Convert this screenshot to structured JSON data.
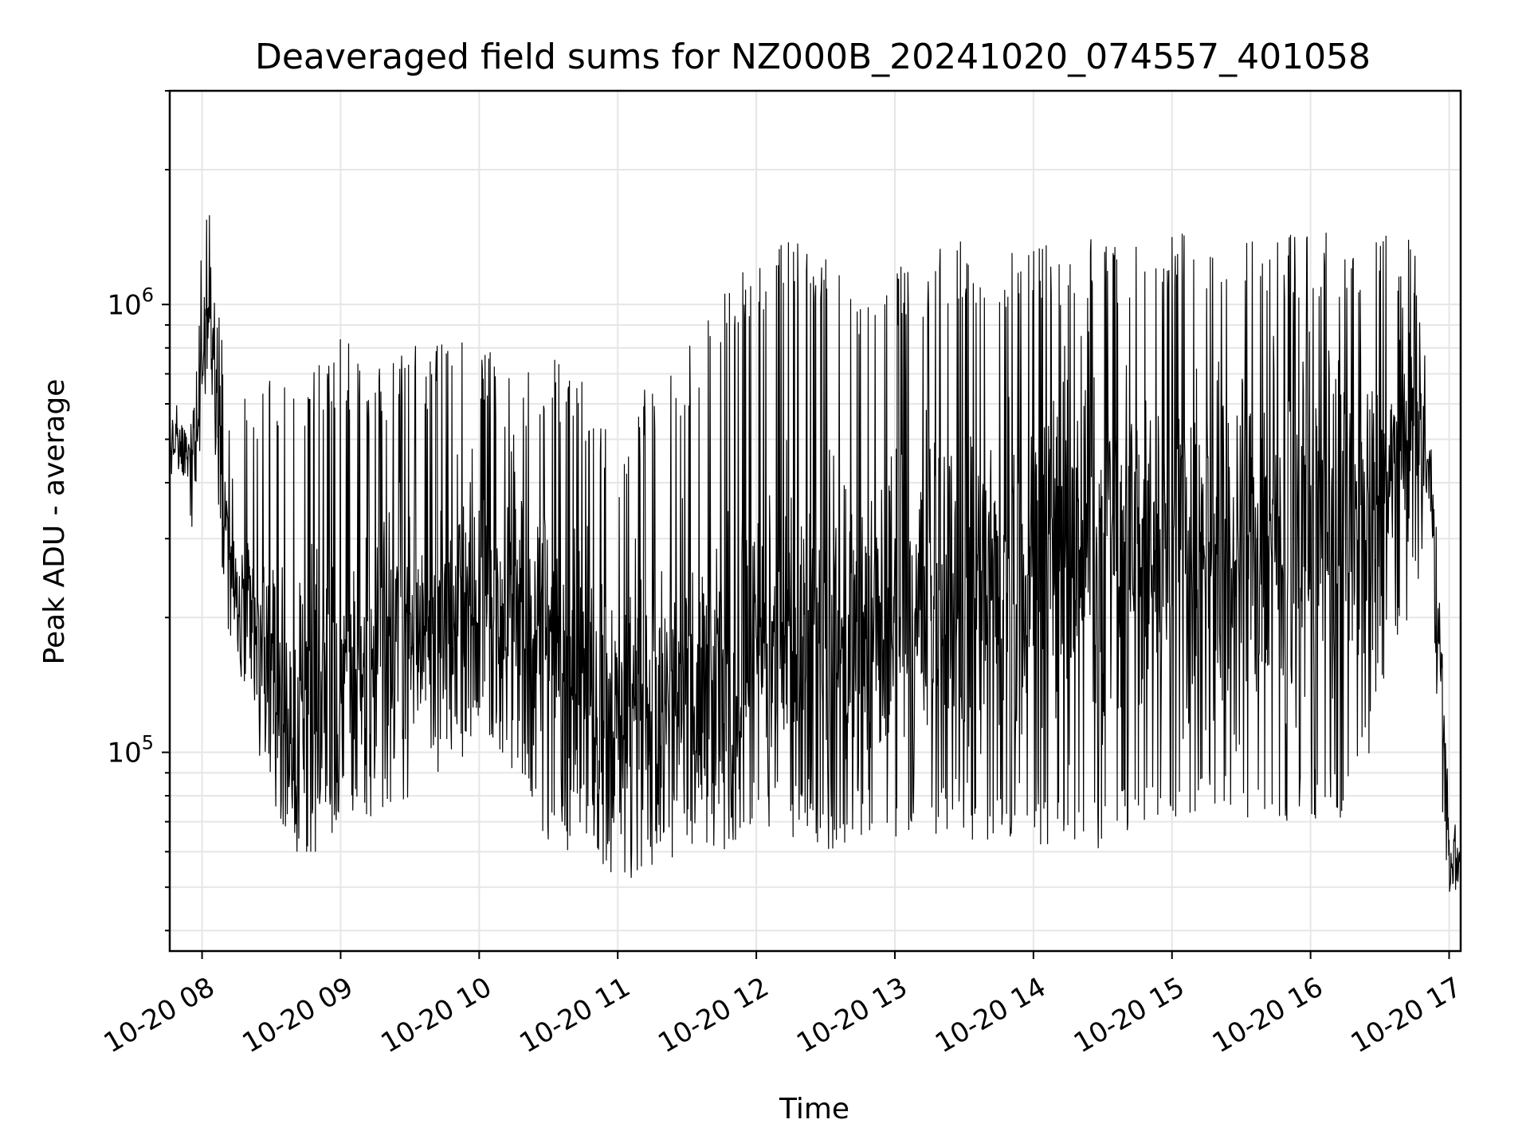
{
  "chart_data": {
    "type": "line",
    "title": "Deaveraged field sums for NZ000B_20241020_074557_401058",
    "xlabel": "Time",
    "ylabel": "Peak ADU - average",
    "yscale": "log",
    "ylim": [
      36000,
      3000000
    ],
    "xlim": [
      "2024-10-20T07:46",
      "2024-10-20T17:05"
    ],
    "grid": true,
    "x_ticks": [
      {
        "value": "2024-10-20T08:00",
        "label": "10-20 08"
      },
      {
        "value": "2024-10-20T09:00",
        "label": "10-20 09"
      },
      {
        "value": "2024-10-20T10:00",
        "label": "10-20 10"
      },
      {
        "value": "2024-10-20T11:00",
        "label": "10-20 11"
      },
      {
        "value": "2024-10-20T12:00",
        "label": "10-20 12"
      },
      {
        "value": "2024-10-20T13:00",
        "label": "10-20 13"
      },
      {
        "value": "2024-10-20T14:00",
        "label": "10-20 14"
      },
      {
        "value": "2024-10-20T15:00",
        "label": "10-20 15"
      },
      {
        "value": "2024-10-20T16:00",
        "label": "10-20 16"
      },
      {
        "value": "2024-10-20T17:00",
        "label": "10-20 17"
      }
    ],
    "y_ticks": [
      {
        "value": 100000,
        "base": "10",
        "exp": "5"
      },
      {
        "value": 1000000,
        "base": "10",
        "exp": "6"
      }
    ],
    "series": [
      {
        "color": "#000000",
        "x": [
          "2024-10-20T07:46",
          "2024-10-20T07:50",
          "2024-10-20T07:55",
          "2024-10-20T08:00",
          "2024-10-20T08:03",
          "2024-10-20T08:06",
          "2024-10-20T08:10",
          "2024-10-20T08:15",
          "2024-10-20T08:20",
          "2024-10-20T08:30",
          "2024-10-20T08:40",
          "2024-10-20T08:50",
          "2024-10-20T09:00",
          "2024-10-20T09:15",
          "2024-10-20T09:30",
          "2024-10-20T09:45",
          "2024-10-20T10:00",
          "2024-10-20T10:15",
          "2024-10-20T10:30",
          "2024-10-20T10:45",
          "2024-10-20T11:00",
          "2024-10-20T11:15",
          "2024-10-20T11:30",
          "2024-10-20T11:45",
          "2024-10-20T12:00",
          "2024-10-20T12:15",
          "2024-10-20T12:30",
          "2024-10-20T12:45",
          "2024-10-20T13:00",
          "2024-10-20T13:15",
          "2024-10-20T13:30",
          "2024-10-20T13:45",
          "2024-10-20T14:00",
          "2024-10-20T14:15",
          "2024-10-20T14:30",
          "2024-10-20T14:45",
          "2024-10-20T15:00",
          "2024-10-20T15:15",
          "2024-10-20T15:30",
          "2024-10-20T15:45",
          "2024-10-20T16:00",
          "2024-10-20T16:15",
          "2024-10-20T16:30",
          "2024-10-20T16:45",
          "2024-10-20T16:52",
          "2024-10-20T16:57",
          "2024-10-20T17:00",
          "2024-10-20T17:05"
        ],
        "center": [
          500000,
          480000,
          450000,
          700000,
          1100000,
          650000,
          350000,
          220000,
          190000,
          150000,
          110000,
          120000,
          130000,
          170000,
          190000,
          200000,
          220000,
          220000,
          180000,
          150000,
          120000,
          140000,
          130000,
          130000,
          150000,
          170000,
          170000,
          170000,
          200000,
          220000,
          200000,
          250000,
          280000,
          280000,
          290000,
          290000,
          300000,
          310000,
          300000,
          300000,
          320000,
          330000,
          330000,
          550000,
          420000,
          130000,
          55000,
          55000
        ],
        "low": [
          380000,
          400000,
          300000,
          500000,
          700000,
          400000,
          200000,
          160000,
          120000,
          80000,
          60000,
          60000,
          70000,
          70000,
          80000,
          90000,
          100000,
          90000,
          60000,
          60000,
          50000,
          55000,
          60000,
          60000,
          70000,
          65000,
          60000,
          65000,
          60000,
          65000,
          60000,
          60000,
          60000,
          60000,
          60000,
          65000,
          65000,
          70000,
          70000,
          60000,
          70000,
          70000,
          110000,
          220000,
          280000,
          60000,
          44000,
          50000
        ],
        "high": [
          650000,
          600000,
          560000,
          1400000,
          2600000,
          1200000,
          700000,
          700000,
          650000,
          750000,
          650000,
          750000,
          850000,
          750000,
          800000,
          850000,
          850000,
          700000,
          800000,
          700000,
          500000,
          700000,
          800000,
          1050000,
          1350000,
          1450000,
          1400000,
          1200000,
          1200000,
          1350000,
          1400000,
          1400000,
          1350000,
          1400000,
          1450000,
          1450000,
          1450000,
          1450000,
          1450000,
          1450000,
          1450000,
          1450000,
          1450000,
          1400000,
          550000,
          200000,
          75000,
          75000
        ]
      }
    ]
  }
}
